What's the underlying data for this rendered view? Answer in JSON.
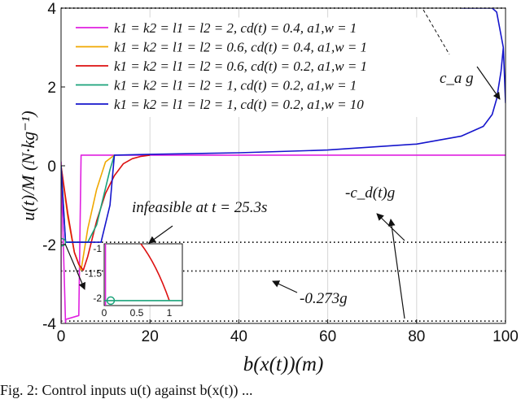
{
  "chart_data": {
    "type": "line",
    "title": "",
    "xlabel": "b(x(t))(m)",
    "ylabel": "u(t)/M (N·kg⁻¹)",
    "xlim": [
      0,
      100
    ],
    "ylim": [
      -4,
      4
    ],
    "x_ticks": [
      "0",
      "20",
      "40",
      "60",
      "80",
      "100"
    ],
    "y_ticks": [
      "4",
      "2",
      "0",
      "-2",
      "-4"
    ],
    "grid": true,
    "legend_position": "top-left",
    "series": [
      {
        "name": "k1 = k2 = l1 = l2 = 2, cd(t) = 0.4, a1,w = 1",
        "color": "#e020e0",
        "x": [
          0,
          0,
          1,
          1,
          4,
          4.5,
          5,
          12,
          100
        ],
        "y": [
          -4,
          0.1,
          -4,
          -3.9,
          -3.8,
          0.27,
          0.27,
          0.27,
          0.27
        ]
      },
      {
        "name": "k1 = k2 = l1 = l2 = 0.6, cd(t) = 0.4, a1,w = 1",
        "color": "#f0a800",
        "x": [
          0,
          1.5,
          3,
          4.5,
          6,
          8,
          10,
          12
        ],
        "y": [
          0,
          -1.3,
          -2.2,
          -2.65,
          -1.6,
          -0.6,
          0.1,
          0.27
        ]
      },
      {
        "name": "k1 = k2 = l1 = l2 = 0.6, cd(t) = 0.2, a1,w = 1",
        "color": "#dd1111",
        "x": [
          0,
          1.5,
          3,
          4,
          5,
          6,
          8,
          10,
          12,
          14,
          16,
          18,
          20
        ],
        "y": [
          0,
          -1.2,
          -2.2,
          -2.5,
          -2.65,
          -2.3,
          -1.4,
          -0.7,
          -0.25,
          0.05,
          0.18,
          0.24,
          0.27
        ]
      },
      {
        "name": "k1 = k2 = l1 = l2 = 1, cd(t) = 0.2, a1,w = 1",
        "color": "#1aa37a",
        "x": [
          0,
          1,
          2,
          4,
          6,
          8,
          9.5,
          11,
          12
        ],
        "y": [
          0,
          -1.94,
          -1.94,
          -1.94,
          -1.94,
          -1.5,
          -0.8,
          -0.1,
          0.27
        ]
      },
      {
        "name": "k1 = k2 = l1 = l2 = 1, cd(t) = 0.2, a1,w = 10",
        "color": "#1515cc",
        "x": [
          0,
          1,
          2,
          7,
          9,
          11,
          12,
          20,
          40,
          60,
          80,
          90,
          95,
          97,
          98,
          99,
          99.5,
          100,
          99.5,
          98,
          97,
          95,
          90
        ],
        "y": [
          0,
          -1.94,
          -1.94,
          -1.94,
          -1.94,
          -1.0,
          0.27,
          0.29,
          0.33,
          0.4,
          0.55,
          0.75,
          1.0,
          1.3,
          1.7,
          2.4,
          3.0,
          1.6,
          3.0,
          3.9,
          4.0,
          4.0,
          4.0
        ]
      }
    ],
    "reference_lines": [
      {
        "y": 4,
        "label": "c_a g"
      },
      {
        "y": -1.94,
        "label": "-c_d(t)g"
      },
      {
        "y": -2.67,
        "label": "-0.273g"
      },
      {
        "y": -3.94,
        "label": ""
      }
    ],
    "annotations": {
      "infeasible": "infeasible at t = 25.3s",
      "cag": "c_a g",
      "cdg": "-c_d(t)g",
      "g273": "-0.273g"
    },
    "inset": {
      "xlim": [
        0,
        1.2
      ],
      "ylim": [
        -2.15,
        -0.9
      ],
      "x_ticks": [
        "0",
        "0.5",
        "1"
      ],
      "y_ticks": [
        "-1",
        "-1.5",
        "-2"
      ]
    }
  },
  "caption": "Fig. 2: Control inputs u(t) against b(x(t)) ..."
}
